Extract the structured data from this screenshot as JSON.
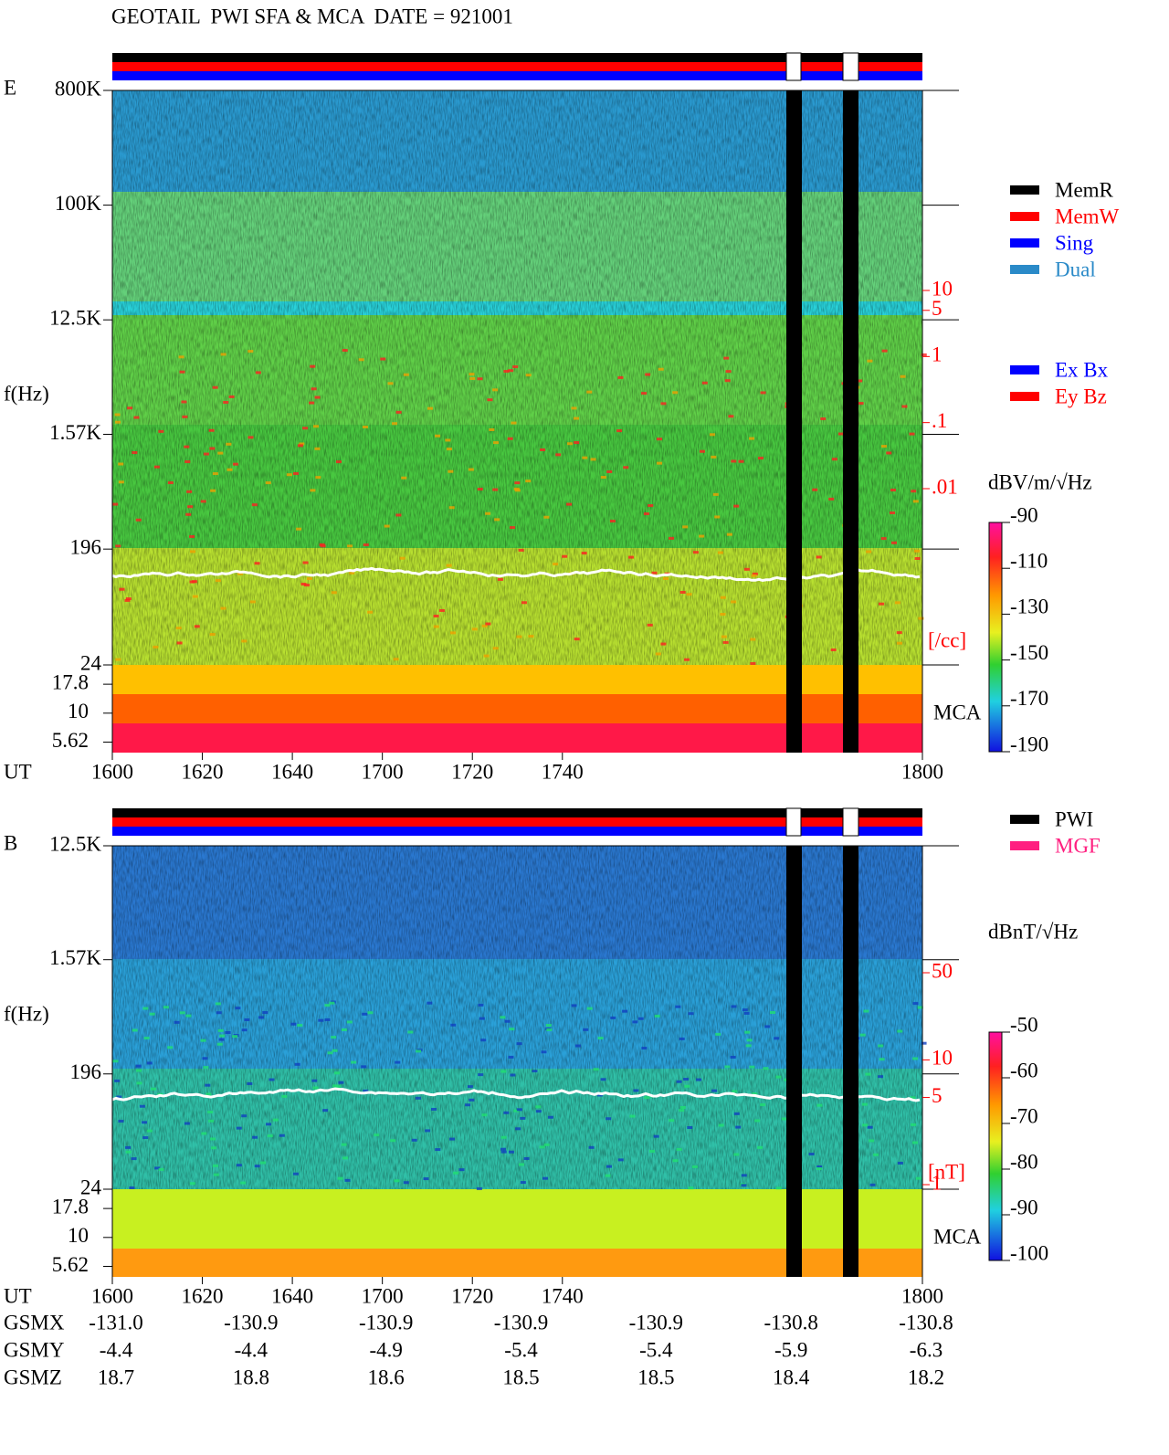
{
  "title": "GEOTAIL  PWI SFA & MCA  DATE = 921001",
  "chart_data": [
    {
      "type": "spectrogram",
      "panel_label": "E",
      "y_label": "f(Hz)",
      "x_label": "UT",
      "x_ticks": [
        "1600",
        "1620",
        "1640",
        "1700",
        "1720",
        "1740",
        "1800"
      ],
      "log_y": true,
      "ylim": [
        24,
        800000
      ],
      "yticks": [
        {
          "value": 800000,
          "label": "800K"
        },
        {
          "value": 100000,
          "label": "100K"
        },
        {
          "value": 12500,
          "label": "12.5K"
        },
        {
          "value": 1570,
          "label": "1.57K"
        },
        196,
        24
      ],
      "mca_label": "MCA",
      "mca_ticks": [
        17.8,
        10,
        5.62
      ],
      "density_axis": {
        "label": "[/cc]",
        "lim": [
          0.01,
          10
        ],
        "ticks": [
          10,
          5,
          1,
          {
            "value": 0.1,
            "label": ".1"
          },
          {
            "value": 0.01,
            "label": ".01"
          }
        ]
      },
      "colorbar": {
        "label": "dBV/m/√Hz",
        "lim": [
          -190,
          -90
        ],
        "ticks": [
          -90,
          -110,
          -130,
          -150,
          -170,
          -190
        ]
      },
      "legend": [
        {
          "name": "MemR",
          "color": "#000000"
        },
        {
          "name": "MemW",
          "color": "#ff0000"
        },
        {
          "name": "Sing",
          "color": "#0000ff"
        },
        {
          "name": "Dual",
          "color": "#2a8ac8"
        }
      ],
      "legend2": [
        {
          "name": "Ex Bx",
          "color": "#0000ff"
        },
        {
          "name": "Ey Bz",
          "color": "#ff0000"
        }
      ]
    },
    {
      "type": "spectrogram",
      "panel_label": "B",
      "y_label": "f(Hz)",
      "x_label": "UT",
      "x_ticks": [
        "1600",
        "1620",
        "1640",
        "1700",
        "1720",
        "1740",
        "1800"
      ],
      "log_y": true,
      "ylim": [
        24,
        12500
      ],
      "yticks": [
        {
          "value": 12500,
          "label": "12.5K"
        },
        {
          "value": 1570,
          "label": "1.57K"
        },
        196,
        24
      ],
      "mca_label": "MCA",
      "mca_ticks": [
        17.8,
        10,
        5.62
      ],
      "density_axis": {
        "label": "[nT]",
        "lim": [
          1,
          50
        ],
        "ticks": [
          50,
          10,
          5,
          1
        ]
      },
      "colorbar": {
        "label": "dBnT/√Hz",
        "lim": [
          -100,
          -50
        ],
        "ticks": [
          -50,
          -60,
          -70,
          -80,
          -90,
          -100
        ]
      },
      "legend": [
        {
          "name": "PWI",
          "color": "#000000"
        },
        {
          "name": "MGF",
          "color": "#ff2080"
        }
      ]
    }
  ],
  "ephemeris": [
    {
      "name": "GSMX",
      "values": [
        "-131.0",
        "-130.9",
        "-130.9",
        "-130.9",
        "-130.9",
        "-130.8",
        "-130.8"
      ]
    },
    {
      "name": "GSMY",
      "values": [
        "-4.4",
        "-4.4",
        "-4.9",
        "-5.4",
        "-5.4",
        "-5.9",
        "-6.3"
      ]
    },
    {
      "name": "GSMZ",
      "values": [
        "18.7",
        "18.8",
        "18.6",
        "18.5",
        "18.5",
        "18.4",
        "18.2"
      ]
    }
  ]
}
